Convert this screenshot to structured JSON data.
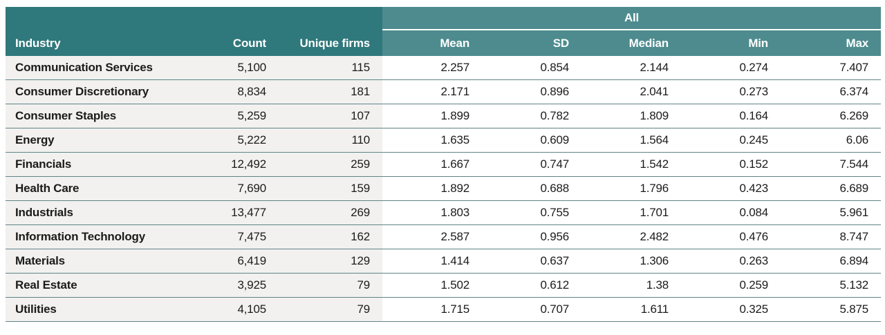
{
  "colors": {
    "header_dark": "#2F787B",
    "header_light": "#4D8B8E",
    "row_shade": "#F2F1F0",
    "divider": "#5F8284",
    "text": "#1B1B1B"
  },
  "chart_data": {
    "type": "table",
    "group_header": "All",
    "group_span_columns": [
      "Mean",
      "SD",
      "Median",
      "Min",
      "Max"
    ],
    "columns": [
      "Industry",
      "Count",
      "Unique firms",
      "Mean",
      "SD",
      "Median",
      "Min",
      "Max"
    ],
    "rows": [
      [
        "Communication Services",
        "5,100",
        "115",
        "2.257",
        "0.854",
        "2.144",
        "0.274",
        "7.407"
      ],
      [
        "Consumer Discretionary",
        "8,834",
        "181",
        "2.171",
        "0.896",
        "2.041",
        "0.273",
        "6.374"
      ],
      [
        "Consumer Staples",
        "5,259",
        "107",
        "1.899",
        "0.782",
        "1.809",
        "0.164",
        "6.269"
      ],
      [
        "Energy",
        "5,222",
        "110",
        "1.635",
        "0.609",
        "1.564",
        "0.245",
        "6.06"
      ],
      [
        "Financials",
        "12,492",
        "259",
        "1.667",
        "0.747",
        "1.542",
        "0.152",
        "7.544"
      ],
      [
        "Health Care",
        "7,690",
        "159",
        "1.892",
        "0.688",
        "1.796",
        "0.423",
        "6.689"
      ],
      [
        "Industrials",
        "13,477",
        "269",
        "1.803",
        "0.755",
        "1.701",
        "0.084",
        "5.961"
      ],
      [
        "Information Technology",
        "7,475",
        "162",
        "2.587",
        "0.956",
        "2.482",
        "0.476",
        "8.747"
      ],
      [
        "Materials",
        "6,419",
        "129",
        "1.414",
        "0.637",
        "1.306",
        "0.263",
        "6.894"
      ],
      [
        "Real Estate",
        "3,925",
        "79",
        "1.502",
        "0.612",
        "1.38",
        "0.259",
        "5.132"
      ],
      [
        "Utilities",
        "4,105",
        "79",
        "1.715",
        "0.707",
        "1.611",
        "0.325",
        "5.875"
      ]
    ]
  }
}
